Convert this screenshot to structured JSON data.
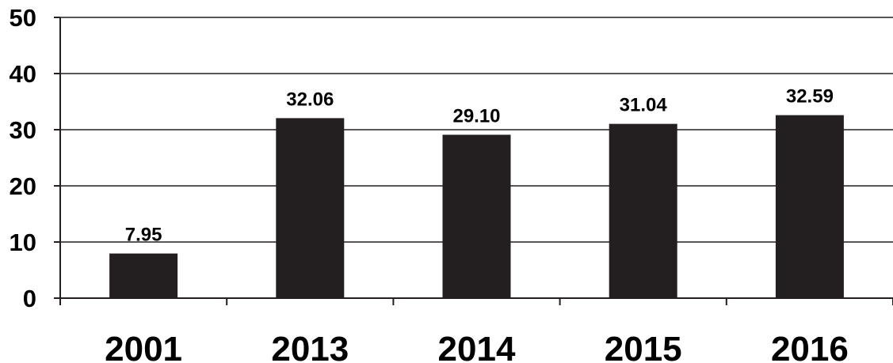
{
  "chart_data": {
    "type": "bar",
    "categories": [
      "2001",
      "2013",
      "2014",
      "2015",
      "2016"
    ],
    "values": [
      7.95,
      32.06,
      29.1,
      31.04,
      32.59
    ],
    "data_labels": [
      "7.95",
      "32.06",
      "29.10",
      "31.04",
      "32.59"
    ],
    "yticks": [
      "0",
      "10",
      "20",
      "30",
      "40",
      "50"
    ],
    "ylim": [
      0,
      50
    ],
    "grid": true,
    "bar_color": "#231f20"
  }
}
